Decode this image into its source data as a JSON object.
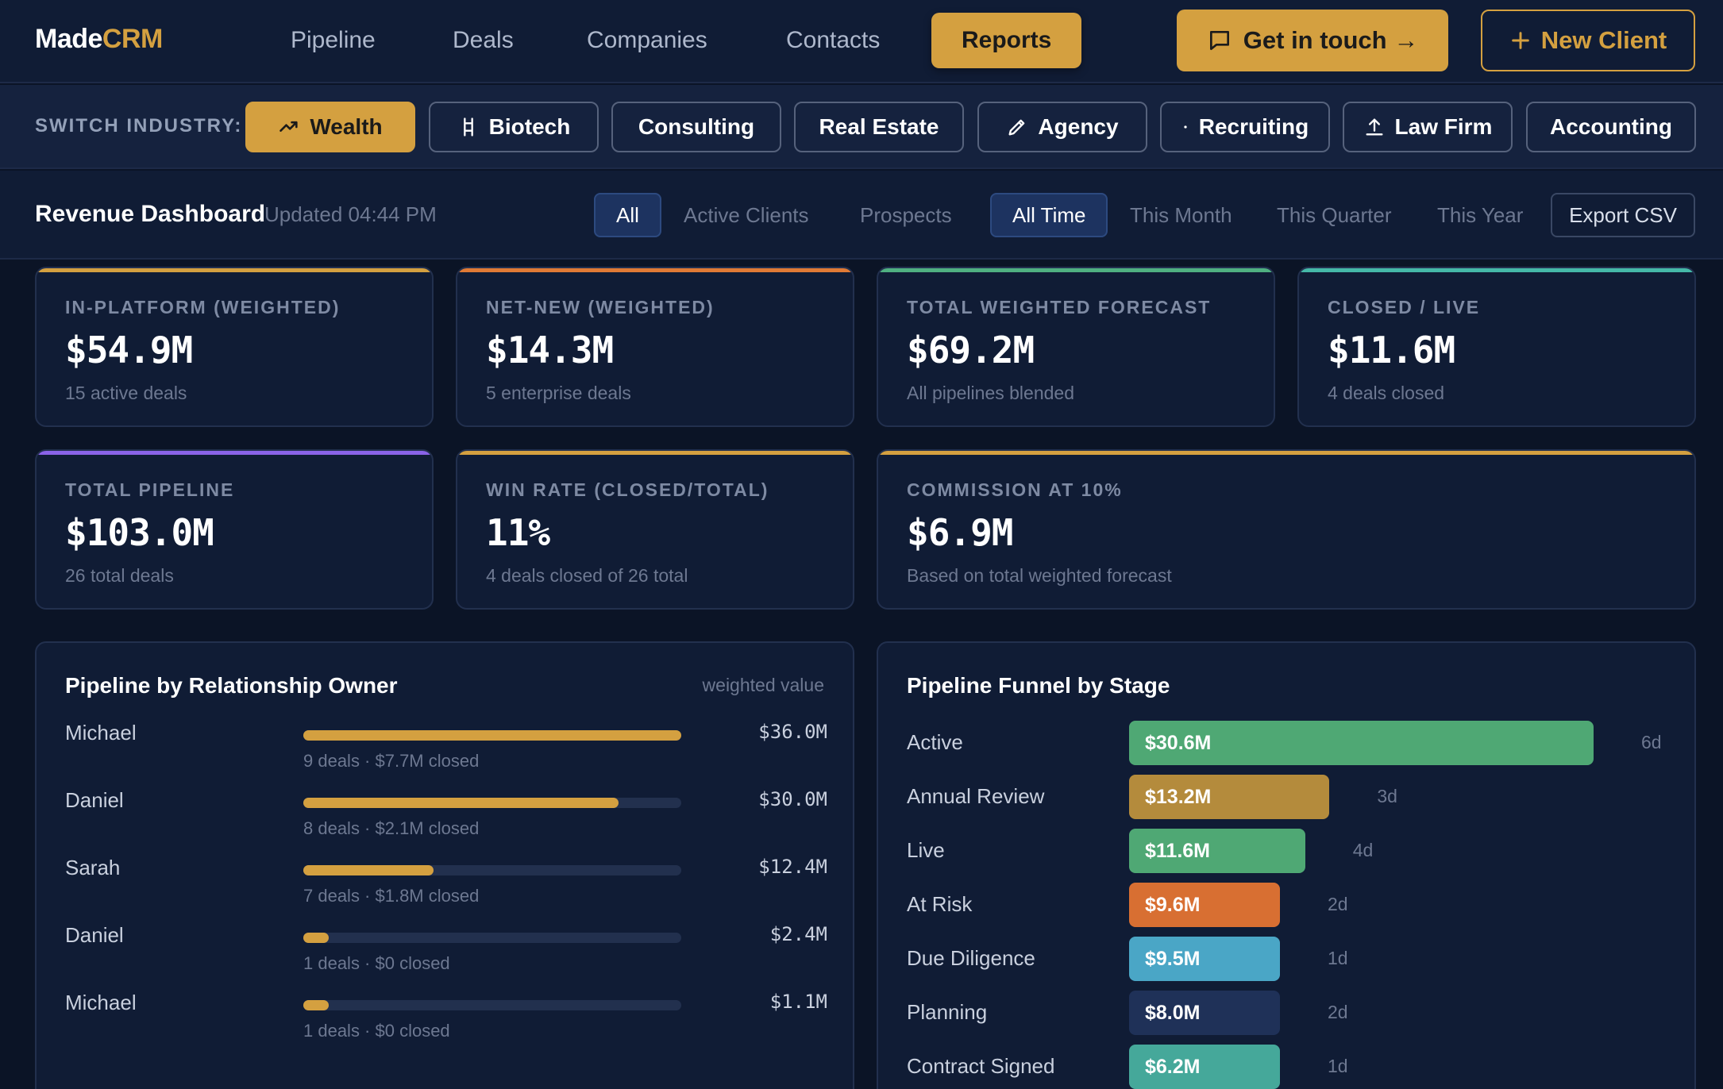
{
  "brand": {
    "part1": "Made",
    "part2": "CRM"
  },
  "nav": {
    "items": [
      {
        "label": "Pipeline"
      },
      {
        "label": "Deals"
      },
      {
        "label": "Companies"
      },
      {
        "label": "Contacts"
      },
      {
        "label": "Reports",
        "active": true
      }
    ],
    "contact_button": "Get in touch →",
    "new_client_button": "New Client"
  },
  "industry": {
    "label": "SWITCH INDUSTRY:",
    "chips": [
      {
        "label": "Wealth",
        "icon": "trend-up-icon",
        "active": true
      },
      {
        "label": "Biotech",
        "icon": "dna-icon"
      },
      {
        "label": "Consulting",
        "icon": ""
      },
      {
        "label": "Real Estate",
        "icon": ""
      },
      {
        "label": "Agency",
        "icon": "pen-icon"
      },
      {
        "label": "Recruiting",
        "icon": "dot-icon"
      },
      {
        "label": "Law Firm",
        "icon": "upload-icon"
      },
      {
        "label": "Accounting",
        "icon": ""
      }
    ]
  },
  "dashboard": {
    "title": "Revenue Dashboard",
    "updated": "Updated 04:44 PM",
    "filters": [
      {
        "label": "All",
        "active": true
      },
      {
        "label": "Active Clients"
      },
      {
        "label": "Prospects"
      },
      {
        "label": "All Time",
        "active": true
      },
      {
        "label": "This Month"
      },
      {
        "label": "This Quarter"
      },
      {
        "label": "This Year"
      }
    ],
    "export_label": "Export CSV"
  },
  "stats": [
    {
      "label": "IN-PLATFORM (WEIGHTED)",
      "value": "$54.9M",
      "sub": "15 active deals",
      "accent": "#d4a040"
    },
    {
      "label": "NET-NEW (WEIGHTED)",
      "value": "$14.3M",
      "sub": "5 enterprise deals",
      "accent": "#e07a35"
    },
    {
      "label": "TOTAL WEIGHTED FORECAST",
      "value": "$69.2M",
      "sub": "All pipelines blended",
      "accent": "#4fb081"
    },
    {
      "label": "CLOSED / LIVE",
      "value": "$11.6M",
      "sub": "4 deals closed",
      "accent": "#45b8a8"
    },
    {
      "label": "TOTAL PIPELINE",
      "value": "$103.0M",
      "sub": "26 total deals",
      "accent": "#8a63e8"
    },
    {
      "label": "WIN RATE (CLOSED/TOTAL)",
      "value": "11%",
      "sub": "4 deals closed of 26 total",
      "accent": "#d4a040"
    },
    {
      "label": "COMMISSION AT 10%",
      "value": "$6.9M",
      "sub": "Based on total weighted forecast",
      "accent": "#d4a040"
    }
  ],
  "owners_panel": {
    "title": "Pipeline by Relationship Owner",
    "note": "weighted value",
    "rows": [
      {
        "name": "Michael",
        "value": "$36.0M",
        "amount": 36.0,
        "meta": "9 deals · $7.7M closed"
      },
      {
        "name": "Daniel",
        "value": "$30.0M",
        "amount": 30.0,
        "meta": "8 deals · $2.1M closed"
      },
      {
        "name": "Sarah",
        "value": "$12.4M",
        "amount": 12.4,
        "meta": "7 deals · $1.8M closed"
      },
      {
        "name": "Daniel",
        "value": "$2.4M",
        "amount": 2.4,
        "meta": "1 deals · $0 closed"
      },
      {
        "name": "Michael",
        "value": "$1.1M",
        "amount": 1.1,
        "meta": "1 deals · $0 closed"
      }
    ]
  },
  "funnel_panel": {
    "title": "Pipeline Funnel by Stage",
    "stages": [
      {
        "name": "Active",
        "value": "$30.6M",
        "amount": 30.6,
        "days": "6d",
        "color": "#4fa874"
      },
      {
        "name": "Annual Review",
        "value": "$13.2M",
        "amount": 13.2,
        "days": "3d",
        "color": "#b48b3c"
      },
      {
        "name": "Live",
        "value": "$11.6M",
        "amount": 11.6,
        "days": "4d",
        "color": "#4fa874"
      },
      {
        "name": "At Risk",
        "value": "$9.6M",
        "amount": 9.6,
        "days": "2d",
        "color": "#d86f32"
      },
      {
        "name": "Due Diligence",
        "value": "$9.5M",
        "amount": 9.5,
        "days": "1d",
        "color": "#4aa6c6"
      },
      {
        "name": "Planning",
        "value": "$8.0M",
        "amount": 8.0,
        "days": "2d",
        "color": "#1f3158"
      },
      {
        "name": "Contract Signed",
        "value": "$6.2M",
        "amount": 6.2,
        "days": "1d",
        "color": "#45a89a"
      }
    ]
  }
}
